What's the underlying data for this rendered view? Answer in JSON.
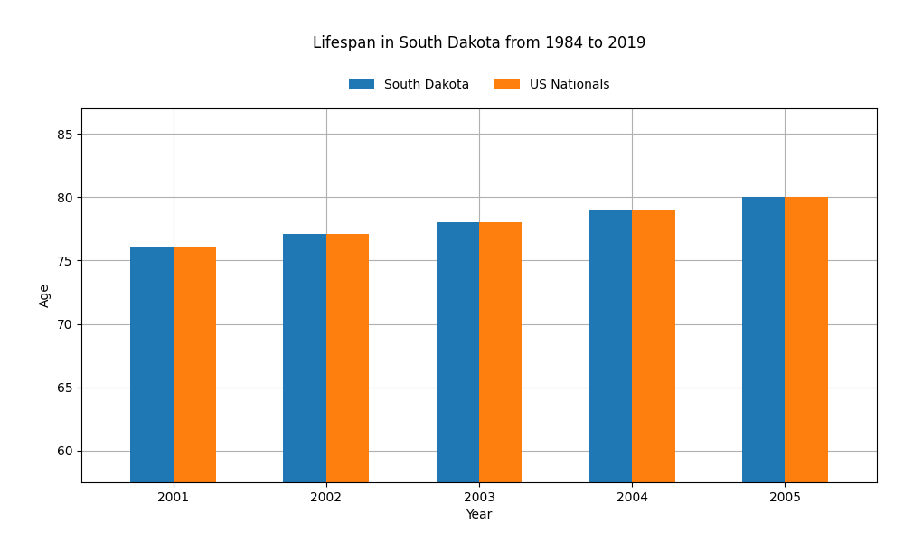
{
  "chart_data": {
    "type": "bar",
    "title": "Lifespan in South Dakota from 1984 to 2019",
    "x_label": "Year",
    "y_label": "Age",
    "categories": [
      "2001",
      "2002",
      "2003",
      "2004",
      "2005"
    ],
    "series": [
      {
        "name": "South Dakota",
        "values": [
          76.1,
          77.1,
          78.0,
          79.0,
          80.0
        ]
      },
      {
        "name": "US Nationals",
        "values": [
          76.1,
          77.1,
          78.0,
          79.0,
          80.0
        ]
      }
    ],
    "ylim": [
      57.5,
      87
    ],
    "yticks": [
      60,
      65,
      70,
      75,
      80,
      85
    ],
    "grid": true,
    "legend": "upper center"
  }
}
